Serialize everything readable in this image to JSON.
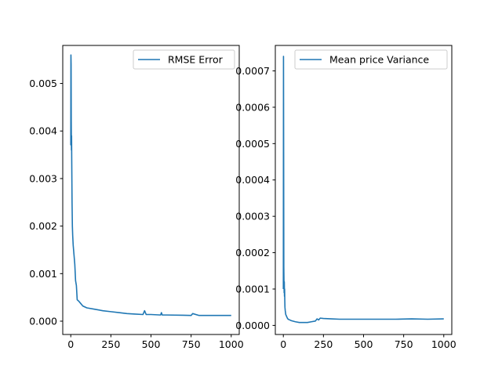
{
  "chart_data": [
    {
      "type": "line",
      "legend_position": "upper right",
      "grid": false,
      "xlim": [
        -50,
        1050
      ],
      "ylim": [
        -0.00028,
        0.0058
      ],
      "x_ticks": [
        0,
        250,
        500,
        750,
        1000
      ],
      "x_tick_labels": [
        "0",
        "250",
        "500",
        "750",
        "1000"
      ],
      "y_ticks": [
        0.0,
        0.001,
        0.002,
        0.003,
        0.004,
        0.005
      ],
      "y_tick_labels": [
        "0.000",
        "0.001",
        "0.002",
        "0.003",
        "0.004",
        "0.005"
      ],
      "series": [
        {
          "name": "RMSE Error",
          "color": "#1f77b4",
          "x": [
            0,
            1,
            2,
            3,
            4,
            5,
            6,
            8,
            10,
            12,
            15,
            20,
            25,
            30,
            35,
            40,
            50,
            60,
            75,
            100,
            150,
            200,
            250,
            300,
            350,
            400,
            450,
            460,
            470,
            500,
            560,
            565,
            570,
            600,
            700,
            750,
            760,
            800,
            900,
            1000
          ],
          "y": [
            0.0037,
            0.0056,
            0.0054,
            0.0042,
            0.0036,
            0.0039,
            0.0034,
            0.0025,
            0.002,
            0.0018,
            0.0016,
            0.0014,
            0.0012,
            0.00085,
            0.00075,
            0.00045,
            0.00042,
            0.00038,
            0.00032,
            0.00028,
            0.00025,
            0.00022,
            0.0002,
            0.00018,
            0.00016,
            0.00015,
            0.00014,
            0.00022,
            0.00014,
            0.00014,
            0.00013,
            0.00018,
            0.00013,
            0.00013,
            0.000125,
            0.00012,
            0.00016,
            0.00012,
            0.00012,
            0.00012
          ]
        }
      ]
    },
    {
      "type": "line",
      "legend_position": "upper right",
      "grid": false,
      "xlim": [
        -50,
        1050
      ],
      "ylim": [
        -2.5e-05,
        0.00077
      ],
      "x_ticks": [
        0,
        250,
        500,
        750,
        1000
      ],
      "x_tick_labels": [
        "0",
        "250",
        "500",
        "750",
        "1000"
      ],
      "y_ticks": [
        0.0,
        0.0001,
        0.0002,
        0.0003,
        0.0004,
        0.0005,
        0.0006,
        0.0007
      ],
      "y_tick_labels": [
        "0.0000",
        "0.0001",
        "0.0002",
        "0.0003",
        "0.0004",
        "0.0005",
        "0.0006",
        "0.0007"
      ],
      "series": [
        {
          "name": "Mean price Variance",
          "color": "#1f77b4",
          "x": [
            0,
            1,
            2,
            3,
            4,
            5,
            6,
            7,
            8,
            9,
            10,
            12,
            15,
            20,
            25,
            30,
            40,
            50,
            75,
            100,
            150,
            175,
            200,
            210,
            220,
            230,
            250,
            300,
            350,
            400,
            500,
            600,
            700,
            800,
            900,
            1000
          ],
          "y": [
            0.0001,
            0.00074,
            0.00045,
            0.00016,
            0.00012,
            9e-05,
            0.00012,
            8e-05,
            0.0001,
            7e-05,
            5e-05,
            4e-05,
            3e-05,
            2.5e-05,
            2e-05,
            1.7e-05,
            1.5e-05,
            1.3e-05,
            1e-05,
            8e-06,
            8e-06,
            1e-05,
            1.2e-05,
            1.8e-05,
            1.5e-05,
            2e-05,
            1.9e-05,
            1.8e-05,
            1.7e-05,
            1.7e-05,
            1.7e-05,
            1.7e-05,
            1.7e-05,
            1.8e-05,
            1.7e-05,
            1.8e-05
          ]
        }
      ]
    }
  ]
}
